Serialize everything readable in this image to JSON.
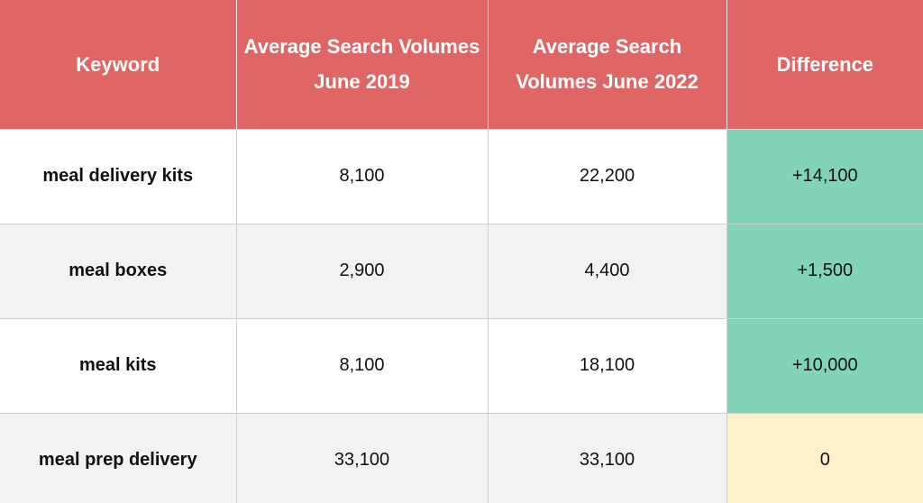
{
  "table": {
    "headers": [
      "Keyword",
      "Average Search Volumes June 2019",
      "Average Search Volumes June 2022",
      "Difference"
    ],
    "rows": [
      {
        "keyword": "meal delivery kits",
        "june_2019": "8,100",
        "june_2022": "22,200",
        "difference": "+14,100"
      },
      {
        "keyword": "meal boxes",
        "june_2019": "2,900",
        "june_2022": "4,400",
        "difference": "+1,500"
      },
      {
        "keyword": "meal kits",
        "june_2019": "8,100",
        "june_2022": "18,100",
        "difference": "+10,000"
      },
      {
        "keyword": "meal prep delivery",
        "june_2019": "33,100",
        "june_2022": "33,100",
        "difference": "0"
      }
    ]
  },
  "colors": {
    "header_bg": "#e06666",
    "positive_diff": "#82d4b6",
    "zero_diff": "#fff0cc",
    "alt_row": "#f2f2f2"
  }
}
